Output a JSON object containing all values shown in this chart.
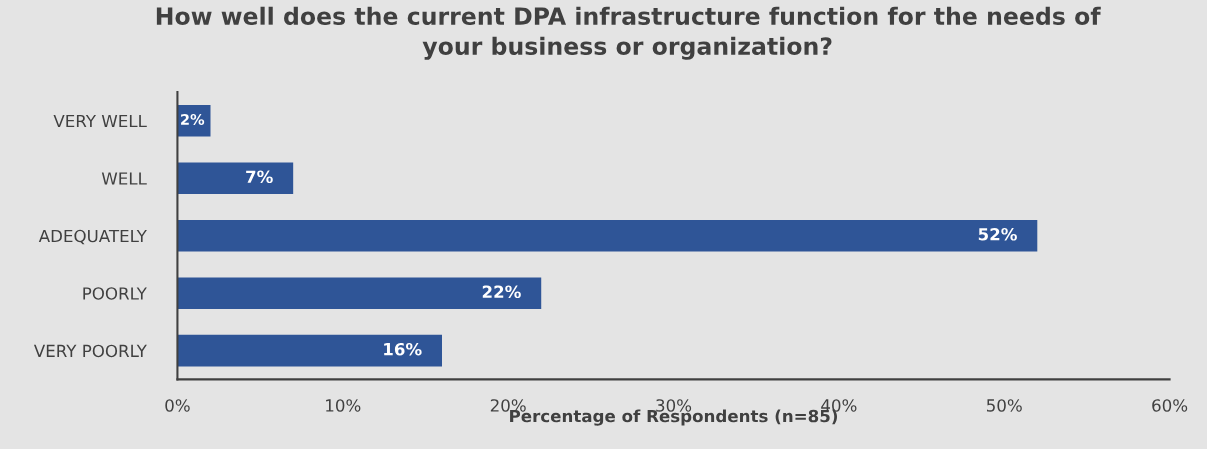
{
  "chart_data": {
    "type": "bar",
    "orientation": "horizontal",
    "title": "How well does the current DPA infrastructure function for the needs of\nyour business or organization?",
    "xlabel": "Percentage of Respondents (n=85)",
    "categories": [
      "VERY WELL",
      "WELL",
      "ADEQUATELY",
      "POORLY",
      "VERY POORLY"
    ],
    "values": [
      2,
      7,
      52,
      22,
      16
    ],
    "color": "#2f5597",
    "value_labels": [
      "2%",
      "7%",
      "52%",
      "22%",
      "16%"
    ],
    "xlim": [
      0,
      60
    ],
    "xticks": [
      {
        "value": 0,
        "label": "0%"
      },
      {
        "value": 10,
        "label": "10%"
      },
      {
        "value": 20,
        "label": "20%"
      },
      {
        "value": 30,
        "label": "30%"
      },
      {
        "value": 40,
        "label": "40%"
      },
      {
        "value": 50,
        "label": "50%"
      },
      {
        "value": 60,
        "label": "60%"
      }
    ],
    "grid": false
  }
}
